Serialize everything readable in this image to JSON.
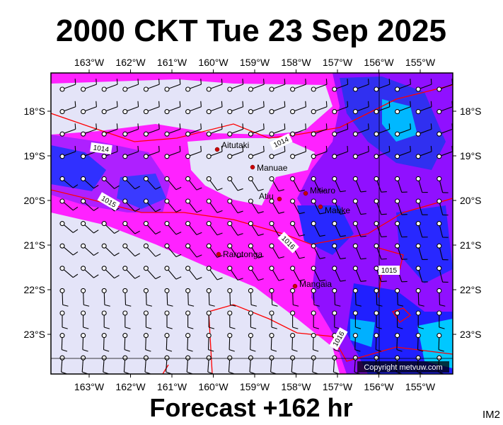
{
  "header": {
    "title": "2000 CKT Tue 23 Sep 2025"
  },
  "axes": {
    "lon_labels": [
      "163°W",
      "162°W",
      "161°W",
      "160°W",
      "159°W",
      "158°W",
      "157°W",
      "156°W",
      "155°W"
    ],
    "lat_labels": [
      "18°S",
      "19°S",
      "20°S",
      "21°S",
      "22°S",
      "23°S"
    ]
  },
  "places": [
    "Aitutaki",
    "Manuae",
    "Mitiaro",
    "Atiu",
    "Mauke",
    "Rarotonga",
    "Mangaia"
  ],
  "isobar_labels": [
    "1014",
    "1014",
    "1015",
    "1016",
    "1015",
    "1016"
  ],
  "copyright": "Copyright metvuw.com",
  "footer": {
    "forecast": "Forecast +162 hr",
    "id": "IM2"
  }
}
